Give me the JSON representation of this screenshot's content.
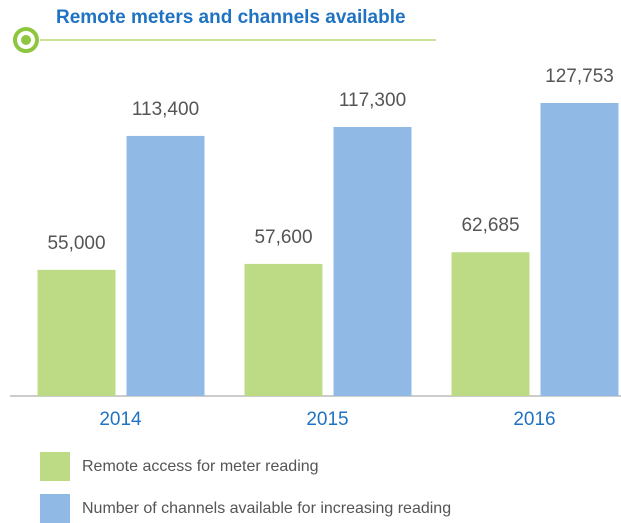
{
  "chart_data": {
    "type": "bar",
    "title": "Remote meters and channels available",
    "categories": [
      "2014",
      "2015",
      "2016"
    ],
    "series": [
      {
        "name": "Remote access for meter reading",
        "color": "#bddb84",
        "values": [
          55000,
          57600,
          62685
        ],
        "value_labels": [
          "55,000",
          "57,600",
          "62,685"
        ]
      },
      {
        "name": "Number of channels available for increasing reading",
        "color": "#90b9e6",
        "values": [
          113400,
          117300,
          127753
        ],
        "value_labels": [
          "113,400",
          "117,300",
          "127,753"
        ]
      }
    ]
  }
}
